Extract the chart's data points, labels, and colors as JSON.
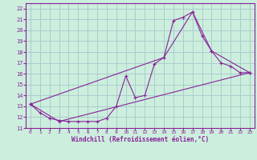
{
  "xlabel": "Windchill (Refroidissement éolien,°C)",
  "bg_color": "#cceedd",
  "grid_color": "#aacccc",
  "line_color": "#882299",
  "xlim": [
    -0.5,
    23.5
  ],
  "ylim": [
    11,
    22.5
  ],
  "xticks": [
    0,
    1,
    2,
    3,
    4,
    5,
    6,
    7,
    8,
    9,
    10,
    11,
    12,
    13,
    14,
    15,
    16,
    17,
    18,
    19,
    20,
    21,
    22,
    23
  ],
  "yticks": [
    11,
    12,
    13,
    14,
    15,
    16,
    17,
    18,
    19,
    20,
    21,
    22
  ],
  "series1": [
    [
      0,
      13.2
    ],
    [
      1,
      12.4
    ],
    [
      2,
      11.9
    ],
    [
      3,
      11.7
    ],
    [
      4,
      11.6
    ],
    [
      5,
      11.6
    ],
    [
      6,
      11.6
    ],
    [
      7,
      11.6
    ],
    [
      8,
      11.9
    ],
    [
      9,
      13.0
    ],
    [
      10,
      15.8
    ],
    [
      11,
      13.8
    ],
    [
      12,
      14.0
    ],
    [
      13,
      16.9
    ],
    [
      14,
      17.5
    ],
    [
      15,
      20.9
    ],
    [
      16,
      21.2
    ],
    [
      17,
      21.7
    ],
    [
      18,
      19.5
    ],
    [
      19,
      18.1
    ],
    [
      20,
      17.0
    ],
    [
      21,
      16.7
    ],
    [
      22,
      16.1
    ],
    [
      23,
      16.1
    ]
  ],
  "series2": [
    [
      0,
      13.2
    ],
    [
      3,
      11.6
    ],
    [
      23,
      16.1
    ]
  ],
  "series3": [
    [
      0,
      13.2
    ],
    [
      14,
      17.5
    ],
    [
      17,
      21.7
    ],
    [
      19,
      18.1
    ],
    [
      23,
      16.1
    ]
  ]
}
